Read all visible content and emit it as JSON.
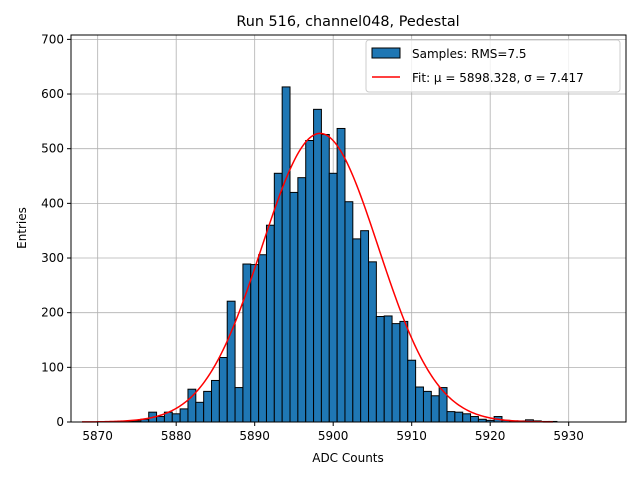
{
  "chart_data": {
    "type": "bar",
    "title": "Run 516, channel048, Pedestal",
    "xlabel": "ADC Counts",
    "ylabel": "Entries",
    "xlim": [
      5866.6,
      5937.3
    ],
    "ylim": [
      0,
      708
    ],
    "x_ticks": [
      5870,
      5880,
      5890,
      5900,
      5910,
      5920,
      5930
    ],
    "y_ticks": [
      0,
      100,
      200,
      300,
      400,
      500,
      600,
      700
    ],
    "grid": true,
    "legend_position": "top-right",
    "histogram": {
      "name": "Samples: RMS=7.5",
      "color": "#1f77b4",
      "bin_width": 1,
      "bin_start": [
        5873.5,
        5874.5,
        5875.5,
        5876.5,
        5877.5,
        5878.5,
        5879.5,
        5880.5,
        5881.5,
        5882.5,
        5883.5,
        5884.5,
        5885.5,
        5886.5,
        5887.5,
        5888.5,
        5889.5,
        5890.5,
        5891.5,
        5892.5,
        5893.5,
        5894.5,
        5895.5,
        5896.5,
        5897.5,
        5898.5,
        5899.5,
        5900.5,
        5901.5,
        5902.5,
        5903.5,
        5904.5,
        5905.5,
        5906.5,
        5907.5,
        5908.5,
        5909.5,
        5910.5,
        5911.5,
        5912.5,
        5913.5,
        5914.5,
        5915.5,
        5916.5,
        5917.5,
        5918.5,
        5919.5,
        5920.5,
        5921.5,
        5922.5,
        5923.5,
        5924.5,
        5925.5,
        5926.5,
        5927.5
      ],
      "counts": [
        1,
        2,
        5,
        18,
        10,
        18,
        15,
        24,
        60,
        36,
        56,
        76,
        118,
        221,
        63,
        289,
        288,
        306,
        360,
        455,
        613,
        420,
        447,
        515,
        572,
        526,
        455,
        537,
        403,
        335,
        350,
        293,
        193,
        194,
        180,
        184,
        113,
        64,
        56,
        48,
        63,
        19,
        18,
        15,
        10,
        5,
        3,
        10,
        3,
        2,
        2,
        4,
        2,
        1,
        1
      ]
    },
    "fit": {
      "name": "Fit: μ = 5898.328, σ = 7.417",
      "color": "#ff0000",
      "mu": 5898.328,
      "sigma": 7.417,
      "amplitude": 528,
      "x_range": [
        5868,
        5928
      ]
    }
  }
}
